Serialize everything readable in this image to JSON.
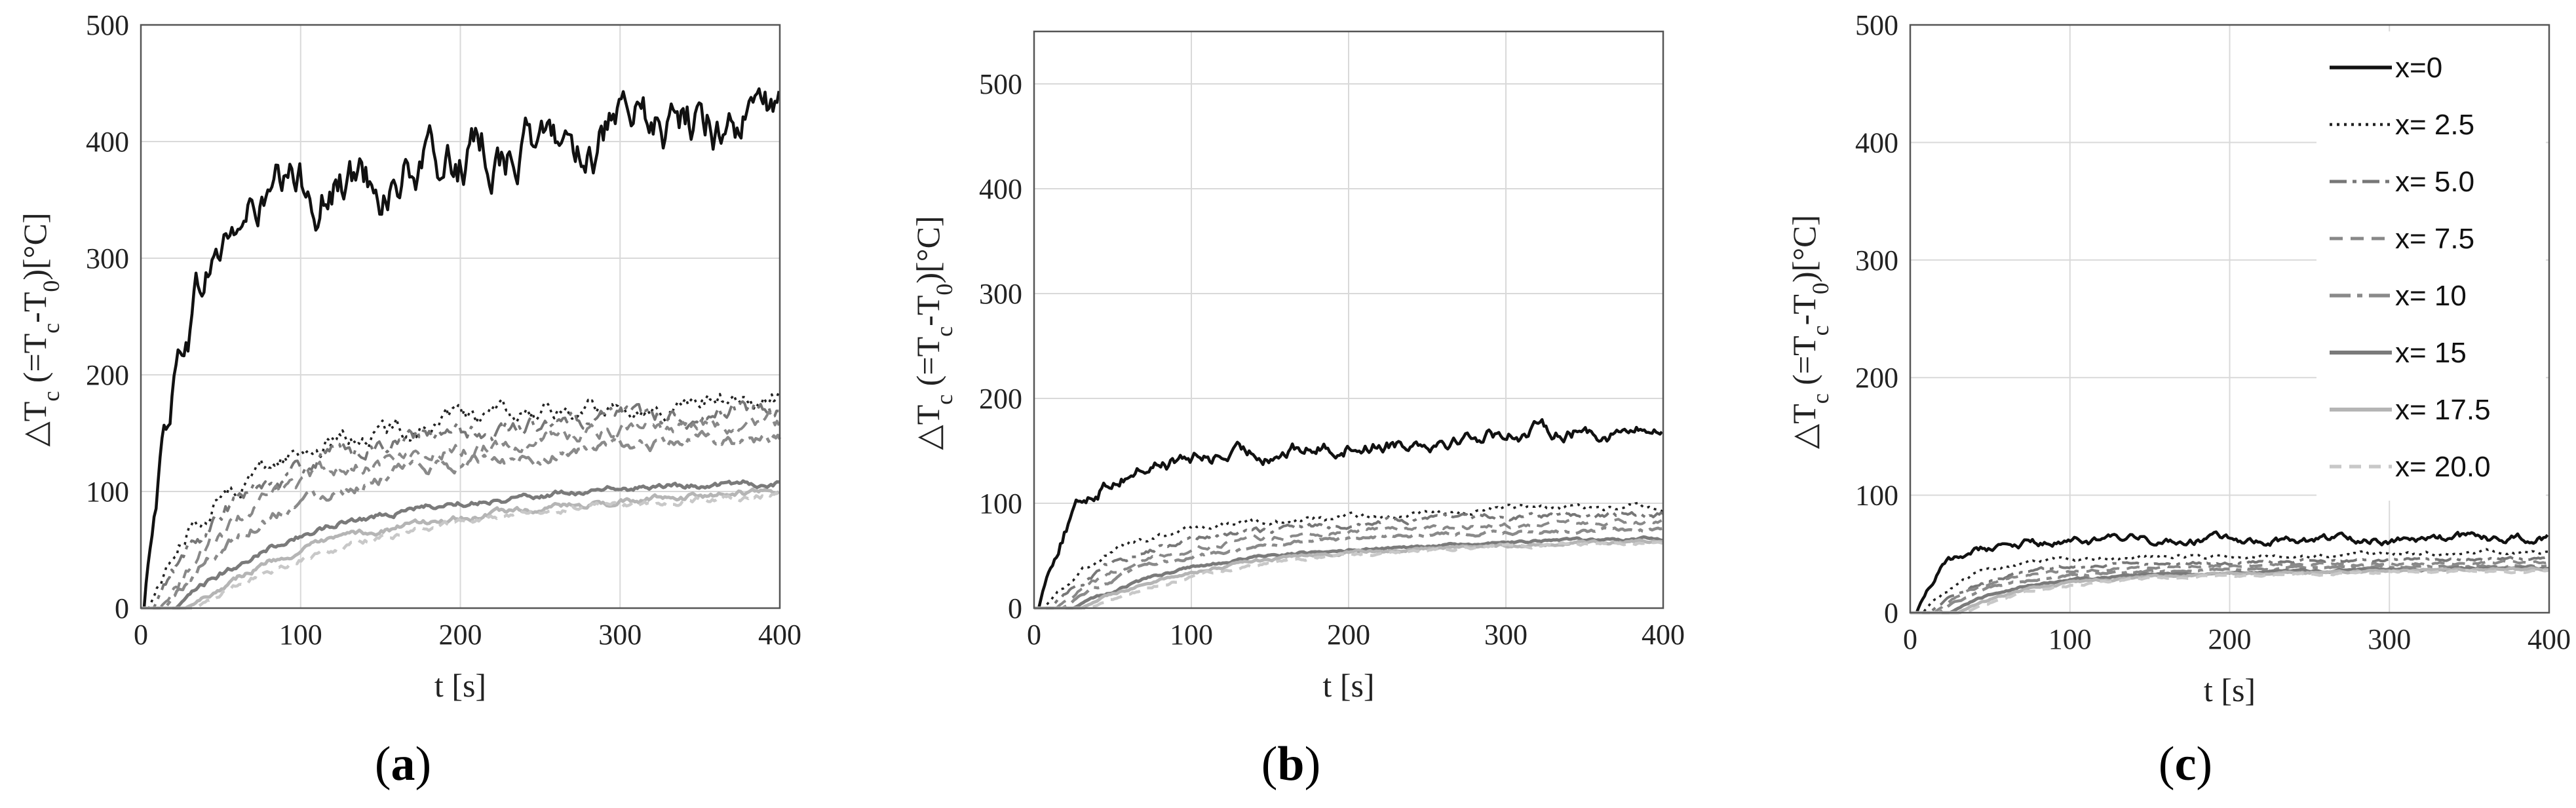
{
  "figure_labels": [
    "a",
    "b",
    "c"
  ],
  "chart_data": [
    {
      "type": "line",
      "panel": "a",
      "xlabel": "t [s]",
      "ylabel": "△T_c (=T_c-T_0)[°C]",
      "xlim": [
        0,
        400
      ],
      "ylim": [
        0,
        500
      ],
      "xticks": [
        0,
        100,
        200,
        300,
        400
      ],
      "yticks": [
        0,
        100,
        200,
        300,
        400,
        500
      ],
      "grid": true,
      "series": [
        {
          "name": "x=0",
          "color": "#111111",
          "onset": 2,
          "tau": 20,
          "level": [
            315,
            355,
            370,
            395,
            410,
            425
          ],
          "noise": 26
        },
        {
          "name": "x= 2.5",
          "color": "#222222",
          "onset": 5,
          "tau": 35,
          "level": [
            120,
            140,
            155,
            165,
            175,
            180
          ],
          "noise": 9
        },
        {
          "name": "x= 5.0",
          "color": "#777777",
          "onset": 8,
          "tau": 40,
          "level": [
            105,
            130,
            145,
            155,
            165,
            170
          ],
          "noise": 8
        },
        {
          "name": "x= 7.5",
          "color": "#888888",
          "onset": 12,
          "tau": 45,
          "level": [
            95,
            120,
            135,
            145,
            155,
            160
          ],
          "noise": 7
        },
        {
          "name": "x= 10",
          "color": "#8a8a8a",
          "onset": 15,
          "tau": 50,
          "level": [
            85,
            110,
            122,
            132,
            140,
            145
          ],
          "noise": 6
        },
        {
          "name": "x= 15",
          "color": "#7a7a7a",
          "onset": 22,
          "tau": 55,
          "level": [
            60,
            80,
            90,
            98,
            104,
            108
          ],
          "noise": 3
        },
        {
          "name": "x= 17.5",
          "color": "#b5b5b5",
          "onset": 28,
          "tau": 60,
          "level": [
            50,
            68,
            78,
            86,
            94,
            100
          ],
          "noise": 3
        },
        {
          "name": "x= 20.0",
          "color": "#c8c8c8",
          "onset": 34,
          "tau": 65,
          "level": [
            45,
            63,
            75,
            84,
            92,
            98
          ],
          "noise": 3
        }
      ]
    },
    {
      "type": "line",
      "panel": "b",
      "xlabel": "t [s]",
      "ylabel": "△T_c (=T_c-T_0)[°C]",
      "xlim": [
        0,
        400
      ],
      "ylim": [
        0,
        550
      ],
      "xticks": [
        0,
        100,
        200,
        300,
        400
      ],
      "yticks": [
        0,
        100,
        200,
        300,
        400,
        500
      ],
      "grid": true,
      "series": [
        {
          "name": "x=0",
          "color": "#111111",
          "onset": 3,
          "tau": 18,
          "level": [
            120,
            140,
            150,
            160,
            170,
            168
          ],
          "noise": 8
        },
        {
          "name": "x= 2.5",
          "color": "#222222",
          "onset": 6,
          "tau": 35,
          "level": [
            70,
            80,
            85,
            90,
            95,
            97
          ],
          "noise": 3
        },
        {
          "name": "x= 5.0",
          "color": "#777777",
          "onset": 10,
          "tau": 40,
          "level": [
            60,
            70,
            78,
            83,
            88,
            90
          ],
          "noise": 3
        },
        {
          "name": "x= 7.5",
          "color": "#888888",
          "onset": 14,
          "tau": 45,
          "level": [
            55,
            65,
            72,
            77,
            80,
            82
          ],
          "noise": 2.5
        },
        {
          "name": "x= 10",
          "color": "#8a8a8a",
          "onset": 18,
          "tau": 50,
          "level": [
            50,
            60,
            66,
            70,
            73,
            75
          ],
          "noise": 2
        },
        {
          "name": "x= 15",
          "color": "#7a7a7a",
          "onset": 25,
          "tau": 55,
          "level": [
            40,
            50,
            56,
            60,
            64,
            66
          ],
          "noise": 1.5
        },
        {
          "name": "x= 17.5",
          "color": "#b5b5b5",
          "onset": 30,
          "tau": 60,
          "level": [
            38,
            48,
            54,
            58,
            62,
            64
          ],
          "noise": 1.5
        },
        {
          "name": "x= 20.0",
          "color": "#c8c8c8",
          "onset": 35,
          "tau": 65,
          "level": [
            35,
            46,
            52,
            57,
            61,
            63
          ],
          "noise": 1.5
        }
      ]
    },
    {
      "type": "line",
      "panel": "c",
      "xlabel": "t [s]",
      "ylabel": "△T_c (=T_c-T_0)[°C]",
      "xlim": [
        0,
        400
      ],
      "ylim": [
        0,
        500
      ],
      "xticks": [
        0,
        100,
        200,
        300,
        400
      ],
      "yticks": [
        0,
        100,
        200,
        300,
        400,
        500
      ],
      "grid": true,
      "legend": "top-right",
      "series": [
        {
          "name": "x=0",
          "color": "#111111",
          "onset": 4,
          "tau": 15,
          "level": [
            55,
            60,
            62,
            62,
            63,
            63
          ],
          "noise": 4
        },
        {
          "name": "x= 2.5",
          "color": "#222222",
          "onset": 8,
          "tau": 25,
          "level": [
            42,
            46,
            48,
            50,
            51,
            52
          ],
          "noise": 2
        },
        {
          "name": "x= 5.0",
          "color": "#777777",
          "onset": 12,
          "tau": 30,
          "level": [
            36,
            40,
            42,
            44,
            45,
            46
          ],
          "noise": 1.5
        },
        {
          "name": "x= 7.5",
          "color": "#888888",
          "onset": 15,
          "tau": 30,
          "level": [
            33,
            37,
            39,
            41,
            42,
            43
          ],
          "noise": 1.2
        },
        {
          "name": "x= 10",
          "color": "#8a8a8a",
          "onset": 18,
          "tau": 32,
          "level": [
            30,
            34,
            36,
            38,
            39,
            40
          ],
          "noise": 1.2
        },
        {
          "name": "x= 15",
          "color": "#7a7a7a",
          "onset": 25,
          "tau": 35,
          "level": [
            27,
            31,
            33,
            35,
            37,
            38
          ],
          "noise": 1
        },
        {
          "name": "x= 17.5",
          "color": "#b5b5b5",
          "onset": 30,
          "tau": 38,
          "level": [
            25,
            29,
            32,
            34,
            36,
            37
          ],
          "noise": 1
        },
        {
          "name": "x= 20.0",
          "color": "#c8c8c8",
          "onset": 35,
          "tau": 40,
          "level": [
            24,
            28,
            31,
            33,
            35,
            36
          ],
          "noise": 1
        }
      ]
    }
  ]
}
